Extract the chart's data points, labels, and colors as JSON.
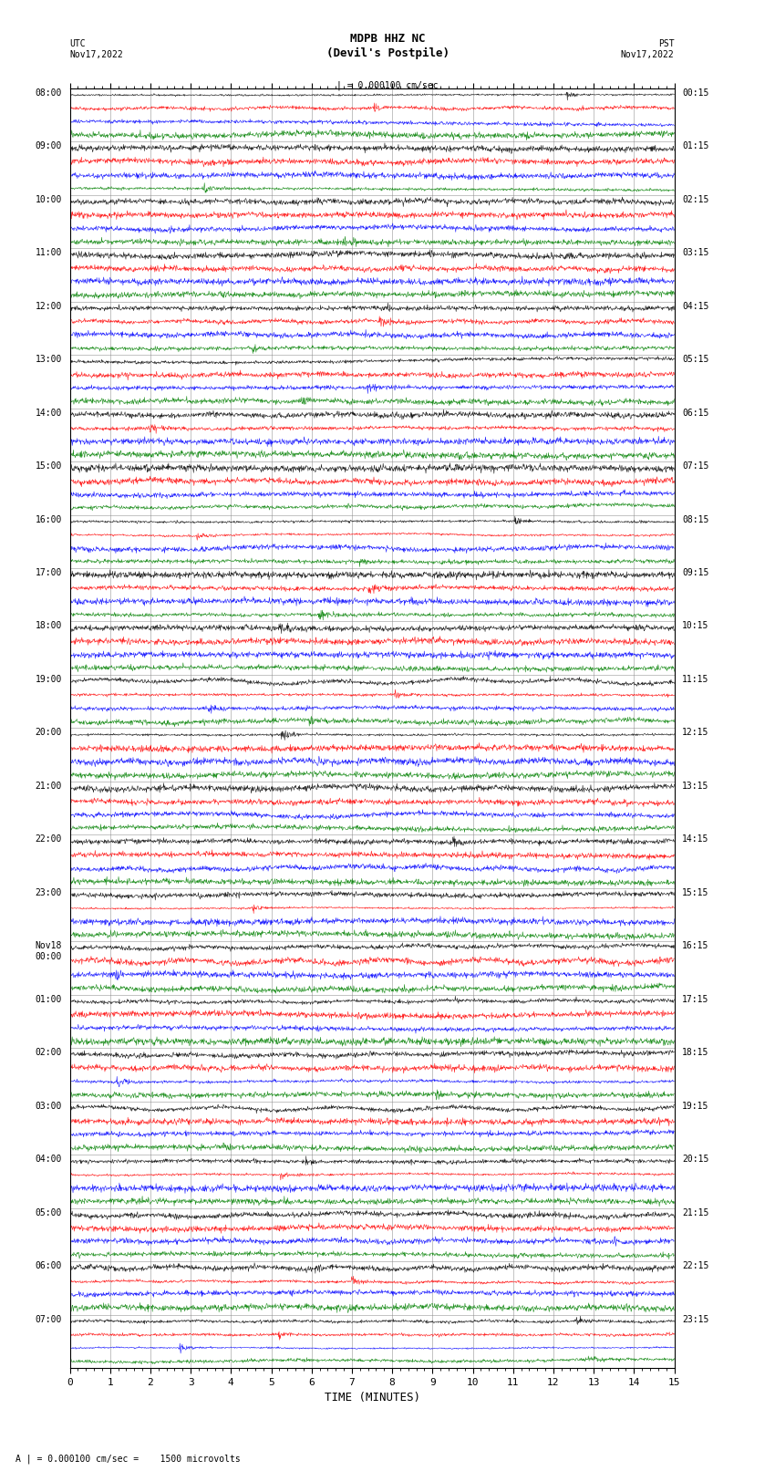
{
  "title_line1": "MDPB HHZ NC",
  "title_line2": "(Devil's Postpile)",
  "scale_label": "= 0.000100 cm/sec",
  "footer_label": "= 0.000100 cm/sec =    1500 microvolts",
  "left_label": "UTC\nNov17,2022",
  "right_label": "PST\nNov17,2022",
  "xlabel": "TIME (MINUTES)",
  "left_times": [
    "08:00",
    "09:00",
    "10:00",
    "11:00",
    "12:00",
    "13:00",
    "14:00",
    "15:00",
    "16:00",
    "17:00",
    "18:00",
    "19:00",
    "20:00",
    "21:00",
    "22:00",
    "23:00",
    "Nov18\n00:00",
    "01:00",
    "02:00",
    "03:00",
    "04:00",
    "05:00",
    "06:00",
    "07:00"
  ],
  "right_times": [
    "00:15",
    "01:15",
    "02:15",
    "03:15",
    "04:15",
    "05:15",
    "06:15",
    "07:15",
    "08:15",
    "09:15",
    "10:15",
    "11:15",
    "12:15",
    "13:15",
    "14:15",
    "15:15",
    "16:15",
    "17:15",
    "18:15",
    "19:15",
    "20:15",
    "21:15",
    "22:15",
    "23:15"
  ],
  "n_rows": 24,
  "n_traces": 4,
  "trace_colors": [
    "black",
    "red",
    "blue",
    "green"
  ],
  "minutes": 15,
  "background_color": "white",
  "grid_color": "#888888",
  "fig_width": 8.5,
  "fig_height": 16.13,
  "dpi": 100,
  "xticks": [
    0,
    1,
    2,
    3,
    4,
    5,
    6,
    7,
    8,
    9,
    10,
    11,
    12,
    13,
    14,
    15
  ],
  "minor_xtick_interval": 0.2
}
